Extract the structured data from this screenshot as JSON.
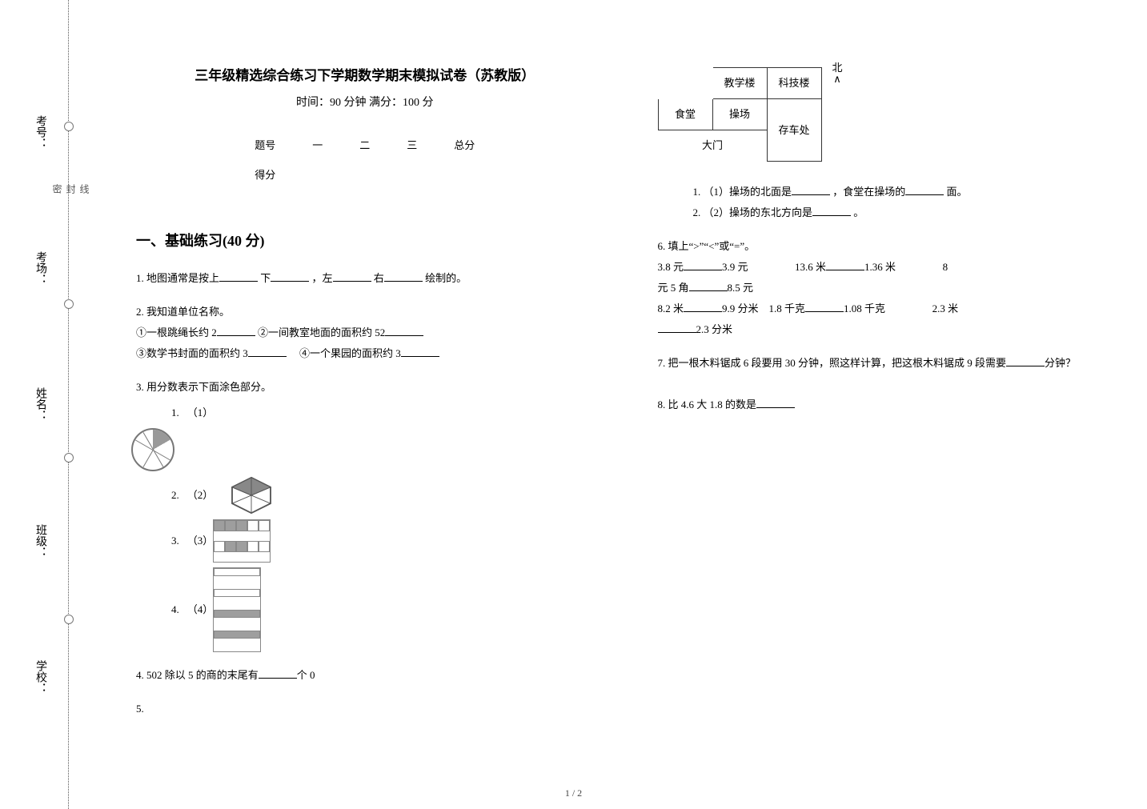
{
  "title": "三年级精选综合练习下学期数学期末模拟试卷（苏教版）",
  "subtitle": "时间：90 分钟  满分：100 分",
  "scoreTable": {
    "headers": [
      "题号",
      "一",
      "二",
      "三",
      "总分"
    ],
    "row2first": "得分"
  },
  "vlabels": [
    "考号：",
    "考场：",
    "姓名：",
    "班级：",
    "学校："
  ],
  "seal_chars": [
    "线",
    "封",
    "密"
  ],
  "section1_heading": "一、基础练习(40 分)",
  "q1": {
    "prefix": "1. 地图通常是按上",
    "mid1": "下",
    "mid2": "，左",
    "mid3": "右",
    "suffix": "绘制的。"
  },
  "q2": {
    "lead": "2. 我知道单位名称。",
    "a": "①一根跳绳长约 2",
    "b": "②一间教室地面的面积约 52",
    "c": "③数学书封面的面积约 3",
    "d": "④一个果园的面积约 3"
  },
  "q3": {
    "lead": "3. 用分数表示下面涂色部分。",
    "items": [
      "（1）",
      "（2）",
      "（3）",
      "（4）"
    ],
    "nums": [
      "1.",
      "2.",
      "3.",
      "4."
    ]
  },
  "q4": {
    "pre": "4.   502 除以 5 的商的末尾有",
    "post": "个 0"
  },
  "q5": {
    "lead": "5.",
    "map": {
      "teach": "教学楼",
      "tech": "科技楼",
      "canteen": "食堂",
      "playground": "操场",
      "gate": "大门",
      "parking": "存车处",
      "north1": "北",
      "north2": "∧"
    },
    "s1pre": "1. （1）操场的北面是",
    "s1mid": "，食堂在操场的",
    "s1post": "面。",
    "s2pre": "2. （2）操场的东北方向是",
    "s2post": "。"
  },
  "q6": {
    "lead": "6. 填上“>”“<”或“=”。",
    "r1a": "3.8 元",
    "r1b": "3.9 元",
    "r1c": "13.6 米",
    "r1d": "1.36 米",
    "r1e_pre": "8",
    "r1f_pre": "元 5 角",
    "r1f_post": "8.5 元",
    "r2a": "8.2 米",
    "r2b": "9.9 分米",
    "r2c": "1.8 千克",
    "r2d": "1.08 千克",
    "r2e": "2.3 米",
    "r3a": "2.3 分米"
  },
  "q7": {
    "pre": "7. 把一根木料锯成 6 段要用 30 分钟，照这样计算，把这根木料锯成 9 段需要",
    "post": "分钟？"
  },
  "q8": {
    "pre": "8. 比 4.6 大 1.8 的数是"
  },
  "footer": "1 / 2",
  "frac_grids": {
    "g3_cols": 5,
    "g3_rows": 2,
    "g3_shade": [
      0,
      1,
      2,
      6,
      7
    ],
    "g4_cols": 1,
    "g4_rows": 4
  },
  "colors": {
    "shade": "#9e9e9e",
    "border": "#888888"
  }
}
